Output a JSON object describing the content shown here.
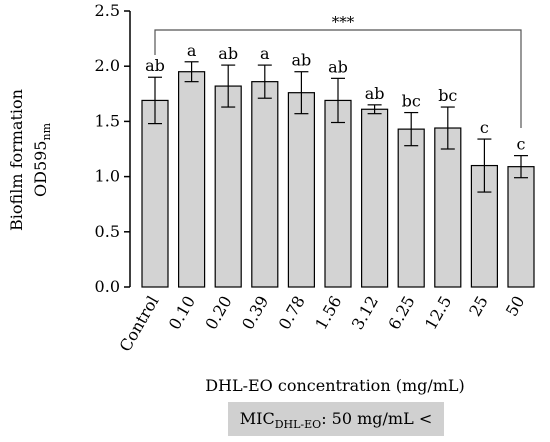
{
  "chart_data": {
    "type": "bar",
    "ylabel_line1": "Biofilm formation",
    "ylabel_line2_main": "OD595",
    "ylabel_line2_sub": "nm",
    "xlabel": "DHL-EO concentration (mg/mL)",
    "ylim": [
      0,
      2.5
    ],
    "yticks": [
      "0.0",
      "0.5",
      "1.0",
      "1.5",
      "2.0",
      "2.5"
    ],
    "categories": [
      "Control",
      "0.10",
      "0.20",
      "0.39",
      "0.78",
      "1.56",
      "3.12",
      "6.25",
      "12.5",
      "25",
      "50"
    ],
    "values": [
      1.69,
      1.95,
      1.82,
      1.86,
      1.76,
      1.69,
      1.61,
      1.43,
      1.44,
      1.1,
      1.09
    ],
    "errors": [
      0.21,
      0.09,
      0.19,
      0.15,
      0.19,
      0.2,
      0.04,
      0.15,
      0.19,
      0.24,
      0.1
    ],
    "letters": [
      "ab",
      "a",
      "ab",
      "a",
      "ab",
      "ab",
      "ab",
      "bc",
      "bc",
      "c",
      "c"
    ],
    "significance": {
      "from": "Control",
      "to": "50",
      "label": "***"
    },
    "bar_color": "#d3d3d3"
  },
  "mic_note": {
    "main": "MIC",
    "sub": "DHL-EO",
    "rest": ": 50 mg/mL <"
  }
}
